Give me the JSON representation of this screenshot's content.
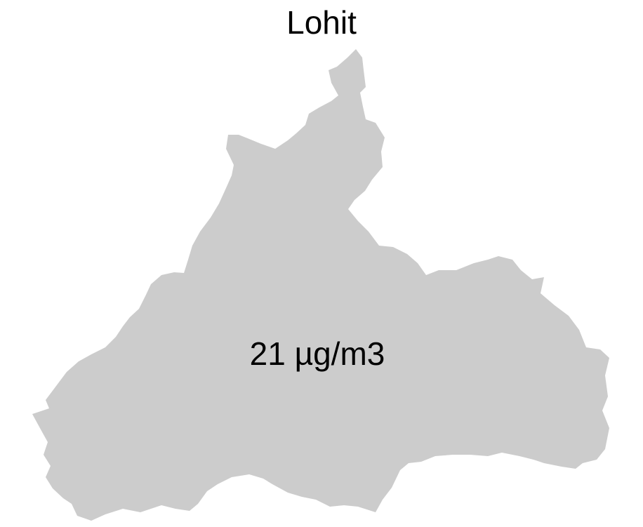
{
  "map": {
    "title": "Lohit",
    "value_label": "21 µg/m3",
    "region_fill": "#cccccc",
    "background": "#ffffff",
    "text_color": "#000000"
  }
}
